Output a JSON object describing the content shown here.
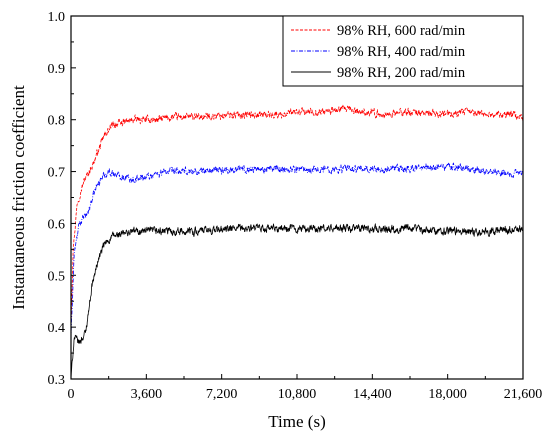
{
  "chart_data": {
    "type": "line",
    "title": "",
    "xlabel": "Time (s)",
    "ylabel": "Instantaneous friction coefficient",
    "xlim": [
      0,
      21600
    ],
    "ylim": [
      0.3,
      1.0
    ],
    "xticks": [
      0,
      3600,
      7200,
      10800,
      14400,
      18000,
      21600
    ],
    "xtick_labels": [
      "0",
      "3,600",
      "7,200",
      "10,800",
      "14,400",
      "18,000",
      "21,600"
    ],
    "yticks": [
      0.3,
      0.4,
      0.5,
      0.6,
      0.7,
      0.8,
      0.9,
      1.0
    ],
    "ytick_labels": [
      "0.3",
      "0.4",
      "0.5",
      "0.6",
      "0.7",
      "0.8",
      "0.9",
      "1.0"
    ],
    "grid": false,
    "legend_position": "top-right",
    "series": [
      {
        "name": "98% RH, 600 rad/min",
        "color": "#ff0000",
        "line_style": "dashed",
        "noise_amplitude": 0.012,
        "x": [
          0,
          100,
          300,
          600,
          1000,
          1300,
          1600,
          2000,
          2500,
          3000,
          4000,
          5000,
          6000,
          8000,
          10000,
          11000,
          12000,
          13000,
          14000,
          15000,
          16000,
          18000,
          19000,
          20000,
          21000,
          21600
        ],
        "y": [
          0.41,
          0.55,
          0.64,
          0.68,
          0.71,
          0.74,
          0.77,
          0.79,
          0.795,
          0.8,
          0.8,
          0.805,
          0.805,
          0.81,
          0.81,
          0.815,
          0.815,
          0.82,
          0.815,
          0.81,
          0.815,
          0.81,
          0.815,
          0.81,
          0.81,
          0.805
        ]
      },
      {
        "name": "98% RH, 400 rad/min",
        "color": "#0000ff",
        "line_style": "dash-dot",
        "noise_amplitude": 0.012,
        "x": [
          0,
          150,
          400,
          800,
          1200,
          1500,
          1800,
          2100,
          2500,
          3000,
          3600,
          4500,
          6000,
          8000,
          10000,
          12000,
          14000,
          16000,
          18000,
          19000,
          20000,
          21600
        ],
        "y": [
          0.38,
          0.54,
          0.6,
          0.62,
          0.67,
          0.69,
          0.7,
          0.695,
          0.69,
          0.685,
          0.69,
          0.7,
          0.7,
          0.705,
          0.705,
          0.705,
          0.705,
          0.705,
          0.71,
          0.705,
          0.7,
          0.695
        ]
      },
      {
        "name": "98% RH, 200 rad/min",
        "color": "#000000",
        "line_style": "solid",
        "noise_amplitude": 0.013,
        "x": [
          0,
          150,
          400,
          700,
          1000,
          1300,
          1600,
          2000,
          2500,
          3000,
          4000,
          6000,
          8000,
          10000,
          12000,
          14000,
          16000,
          18000,
          20000,
          21600
        ],
        "y": [
          0.3,
          0.38,
          0.37,
          0.39,
          0.48,
          0.53,
          0.56,
          0.575,
          0.58,
          0.585,
          0.585,
          0.585,
          0.59,
          0.59,
          0.59,
          0.59,
          0.59,
          0.585,
          0.585,
          0.59
        ]
      }
    ]
  }
}
